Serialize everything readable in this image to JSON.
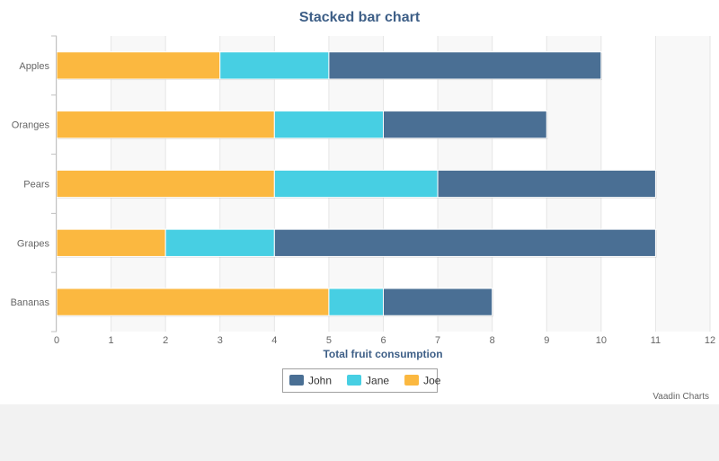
{
  "chart_data": {
    "type": "bar",
    "orientation": "horizontal",
    "stacked": true,
    "title": "Stacked bar chart",
    "xlabel": "Total fruit consumption",
    "ylabel": "",
    "categories": [
      "Apples",
      "Oranges",
      "Pears",
      "Grapes",
      "Bananas"
    ],
    "series": [
      {
        "name": "John",
        "color": "#4a6f94",
        "values": [
          5,
          3,
          4,
          7,
          2
        ]
      },
      {
        "name": "Jane",
        "color": "#47cfe3",
        "values": [
          2,
          2,
          3,
          2,
          1
        ]
      },
      {
        "name": "Joe",
        "color": "#fbb840",
        "values": [
          3,
          4,
          4,
          2,
          5
        ]
      }
    ],
    "stack_order": [
      "Joe",
      "Jane",
      "John"
    ],
    "xlim": [
      0,
      12
    ],
    "xticks": [
      "0",
      "1",
      "2",
      "3",
      "4",
      "5",
      "6",
      "7",
      "8",
      "9",
      "10",
      "11",
      "12"
    ],
    "grid": true,
    "legend_position": "bottom-center",
    "credit": "Vaadin Charts"
  }
}
